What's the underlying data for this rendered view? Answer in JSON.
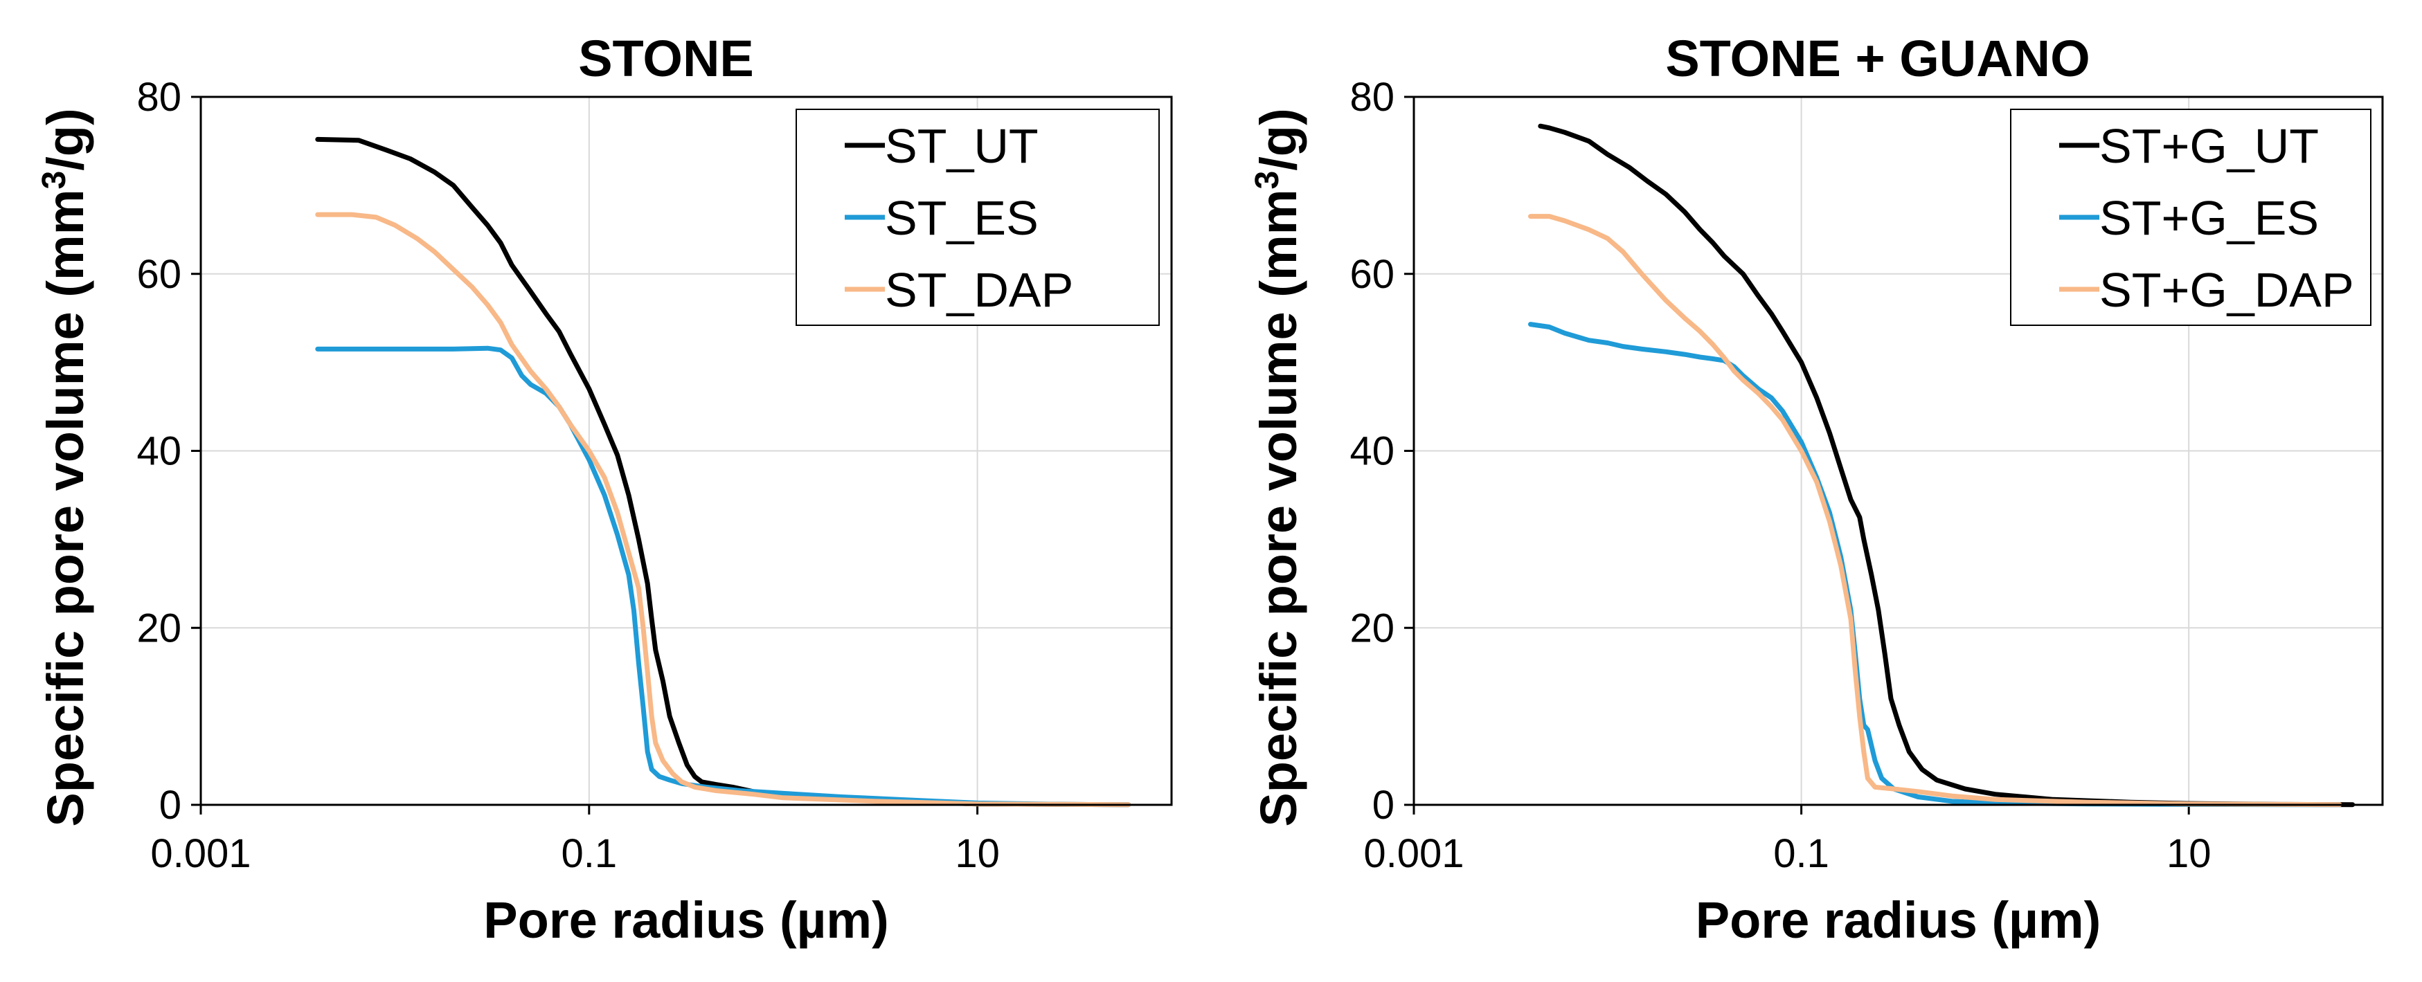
{
  "chart_data": [
    {
      "type": "line",
      "title": "STONE",
      "xlabel": "Pore radius (µm)",
      "ylabel_parts": [
        "Specific pore volume (mm",
        "3",
        "/g)"
      ],
      "xscale": "log",
      "xlim": [
        0.001,
        100
      ],
      "ylim": [
        0,
        80
      ],
      "xticks": [
        0.001,
        0.1,
        10
      ],
      "xtick_labels": [
        "0.001",
        "0.1",
        "10"
      ],
      "yticks": [
        0,
        20,
        40,
        60,
        80
      ],
      "ytick_labels": [
        "0",
        "20",
        "40",
        "60",
        "80"
      ],
      "grid": true,
      "legend_position": "top-right",
      "series": [
        {
          "name": "ST_UT",
          "color": "#000000",
          "points": [
            [
              0.004,
              75.2
            ],
            [
              0.0065,
              75.1
            ],
            [
              0.009,
              74
            ],
            [
              0.012,
              73
            ],
            [
              0.016,
              71.5
            ],
            [
              0.02,
              70
            ],
            [
              0.025,
              67.5
            ],
            [
              0.03,
              65.5
            ],
            [
              0.035,
              63.5
            ],
            [
              0.04,
              61
            ],
            [
              0.05,
              58
            ],
            [
              0.06,
              55.5
            ],
            [
              0.07,
              53.5
            ],
            [
              0.08,
              51
            ],
            [
              0.1,
              47
            ],
            [
              0.12,
              43
            ],
            [
              0.14,
              39.5
            ],
            [
              0.16,
              35
            ],
            [
              0.18,
              30
            ],
            [
              0.2,
              25
            ],
            [
              0.21,
              21
            ],
            [
              0.22,
              17.5
            ],
            [
              0.24,
              14
            ],
            [
              0.26,
              10
            ],
            [
              0.29,
              7
            ],
            [
              0.32,
              4.5
            ],
            [
              0.35,
              3.2
            ],
            [
              0.38,
              2.6
            ],
            [
              0.45,
              2.3
            ],
            [
              0.55,
              2
            ],
            [
              0.7,
              1.5
            ],
            [
              1,
              1
            ],
            [
              2,
              0.6
            ],
            [
              5,
              0.3
            ],
            [
              10,
              0.1
            ],
            [
              30,
              0.05
            ],
            [
              60,
              0.02
            ]
          ]
        },
        {
          "name": "ST_ES",
          "color": "#1f9bd7",
          "points": [
            [
              0.004,
              51.5
            ],
            [
              0.01,
              51.5
            ],
            [
              0.02,
              51.5
            ],
            [
              0.03,
              51.6
            ],
            [
              0.035,
              51.4
            ],
            [
              0.04,
              50.5
            ],
            [
              0.045,
              48.5
            ],
            [
              0.05,
              47.5
            ],
            [
              0.06,
              46.5
            ],
            [
              0.07,
              45
            ],
            [
              0.08,
              43
            ],
            [
              0.1,
              39
            ],
            [
              0.12,
              35
            ],
            [
              0.14,
              30.5
            ],
            [
              0.16,
              26
            ],
            [
              0.17,
              22
            ],
            [
              0.18,
              16
            ],
            [
              0.19,
              11
            ],
            [
              0.2,
              6
            ],
            [
              0.21,
              4
            ],
            [
              0.23,
              3.2
            ],
            [
              0.26,
              2.8
            ],
            [
              0.3,
              2.4
            ],
            [
              0.4,
              2
            ],
            [
              0.6,
              1.6
            ],
            [
              1,
              1.3
            ],
            [
              2,
              0.9
            ],
            [
              5,
              0.5
            ],
            [
              10,
              0.2
            ],
            [
              30,
              0.05
            ],
            [
              60,
              0.02
            ]
          ]
        },
        {
          "name": "ST_DAP",
          "color": "#f8b887",
          "points": [
            [
              0.004,
              66.7
            ],
            [
              0.006,
              66.7
            ],
            [
              0.008,
              66.4
            ],
            [
              0.01,
              65.5
            ],
            [
              0.013,
              64
            ],
            [
              0.016,
              62.5
            ],
            [
              0.02,
              60.5
            ],
            [
              0.025,
              58.5
            ],
            [
              0.03,
              56.5
            ],
            [
              0.035,
              54.5
            ],
            [
              0.04,
              52
            ],
            [
              0.05,
              49
            ],
            [
              0.06,
              47
            ],
            [
              0.07,
              45
            ],
            [
              0.08,
              43
            ],
            [
              0.1,
              40
            ],
            [
              0.12,
              37
            ],
            [
              0.14,
              33
            ],
            [
              0.16,
              28.5
            ],
            [
              0.18,
              24.5
            ],
            [
              0.19,
              20
            ],
            [
              0.2,
              15
            ],
            [
              0.21,
              10
            ],
            [
              0.22,
              7
            ],
            [
              0.24,
              5
            ],
            [
              0.27,
              3.5
            ],
            [
              0.3,
              2.6
            ],
            [
              0.35,
              2
            ],
            [
              0.45,
              1.6
            ],
            [
              0.7,
              1.2
            ],
            [
              1,
              0.8
            ],
            [
              3,
              0.4
            ],
            [
              10,
              0.1
            ],
            [
              30,
              0.05
            ],
            [
              60,
              0.02
            ]
          ]
        }
      ]
    },
    {
      "type": "line",
      "title": "STONE + GUANO",
      "xlabel": "Pore radius (µm)",
      "ylabel_parts": [
        "Specific pore volume (mm",
        "3",
        "/g)"
      ],
      "xscale": "log",
      "xlim": [
        0.001,
        100
      ],
      "ylim": [
        0,
        80
      ],
      "xticks": [
        0.001,
        0.1,
        10
      ],
      "xtick_labels": [
        "0.001",
        "0.1",
        "10"
      ],
      "yticks": [
        0,
        20,
        40,
        60,
        80
      ],
      "ytick_labels": [
        "0",
        "20",
        "40",
        "60",
        "80"
      ],
      "grid": true,
      "legend_position": "top-right",
      "series": [
        {
          "name": "ST+G_UT",
          "color": "#000000",
          "points": [
            [
              0.0045,
              76.7
            ],
            [
              0.005,
              76.5
            ],
            [
              0.006,
              76
            ],
            [
              0.008,
              75
            ],
            [
              0.01,
              73.5
            ],
            [
              0.013,
              72
            ],
            [
              0.016,
              70.5
            ],
            [
              0.02,
              69
            ],
            [
              0.025,
              67
            ],
            [
              0.03,
              65
            ],
            [
              0.035,
              63.5
            ],
            [
              0.04,
              62
            ],
            [
              0.05,
              60
            ],
            [
              0.06,
              57.5
            ],
            [
              0.07,
              55.5
            ],
            [
              0.08,
              53.5
            ],
            [
              0.1,
              50
            ],
            [
              0.12,
              46
            ],
            [
              0.14,
              42
            ],
            [
              0.16,
              38
            ],
            [
              0.18,
              34.5
            ],
            [
              0.2,
              32.5
            ],
            [
              0.21,
              30
            ],
            [
              0.23,
              26
            ],
            [
              0.25,
              22
            ],
            [
              0.27,
              17
            ],
            [
              0.29,
              12
            ],
            [
              0.32,
              9
            ],
            [
              0.36,
              6
            ],
            [
              0.42,
              4
            ],
            [
              0.5,
              2.8
            ],
            [
              0.7,
              1.8
            ],
            [
              1,
              1.2
            ],
            [
              2,
              0.6
            ],
            [
              5,
              0.3
            ],
            [
              10,
              0.15
            ],
            [
              30,
              0.05
            ],
            [
              70,
              0.02
            ]
          ]
        },
        {
          "name": "ST+G_ES",
          "color": "#1f9bd7",
          "points": [
            [
              0.004,
              54.3
            ],
            [
              0.005,
              54
            ],
            [
              0.006,
              53.3
            ],
            [
              0.008,
              52.5
            ],
            [
              0.01,
              52.2
            ],
            [
              0.012,
              51.8
            ],
            [
              0.015,
              51.5
            ],
            [
              0.02,
              51.2
            ],
            [
              0.025,
              50.9
            ],
            [
              0.03,
              50.6
            ],
            [
              0.035,
              50.4
            ],
            [
              0.04,
              50.2
            ],
            [
              0.045,
              49.5
            ],
            [
              0.05,
              48.5
            ],
            [
              0.06,
              47
            ],
            [
              0.07,
              46
            ],
            [
              0.08,
              44.5
            ],
            [
              0.1,
              41
            ],
            [
              0.12,
              37
            ],
            [
              0.14,
              33
            ],
            [
              0.16,
              28
            ],
            [
              0.18,
              22
            ],
            [
              0.19,
              17
            ],
            [
              0.2,
              12
            ],
            [
              0.21,
              9
            ],
            [
              0.22,
              8.5
            ],
            [
              0.24,
              5
            ],
            [
              0.26,
              3
            ],
            [
              0.3,
              1.8
            ],
            [
              0.4,
              0.9
            ],
            [
              0.6,
              0.4
            ],
            [
              1,
              0.2
            ],
            [
              3,
              0.1
            ],
            [
              10,
              0.05
            ],
            [
              30,
              0.02
            ],
            [
              60,
              0.01
            ]
          ]
        },
        {
          "name": "ST+G_DAP",
          "color": "#f8b887",
          "points": [
            [
              0.004,
              66.5
            ],
            [
              0.005,
              66.5
            ],
            [
              0.006,
              66
            ],
            [
              0.008,
              65
            ],
            [
              0.01,
              64
            ],
            [
              0.012,
              62.5
            ],
            [
              0.015,
              60
            ],
            [
              0.02,
              57
            ],
            [
              0.025,
              55
            ],
            [
              0.03,
              53.5
            ],
            [
              0.035,
              52
            ],
            [
              0.04,
              50.5
            ],
            [
              0.045,
              49
            ],
            [
              0.05,
              48
            ],
            [
              0.06,
              46.5
            ],
            [
              0.07,
              45
            ],
            [
              0.08,
              43.5
            ],
            [
              0.1,
              40
            ],
            [
              0.12,
              36.5
            ],
            [
              0.14,
              32
            ],
            [
              0.16,
              27
            ],
            [
              0.18,
              21
            ],
            [
              0.19,
              15
            ],
            [
              0.2,
              10
            ],
            [
              0.21,
              6
            ],
            [
              0.22,
              3
            ],
            [
              0.24,
              2
            ],
            [
              0.3,
              1.8
            ],
            [
              0.4,
              1.5
            ],
            [
              0.6,
              1
            ],
            [
              1,
              0.6
            ],
            [
              3,
              0.3
            ],
            [
              10,
              0.1
            ],
            [
              30,
              0.05
            ],
            [
              60,
              0.02
            ]
          ]
        }
      ]
    }
  ]
}
